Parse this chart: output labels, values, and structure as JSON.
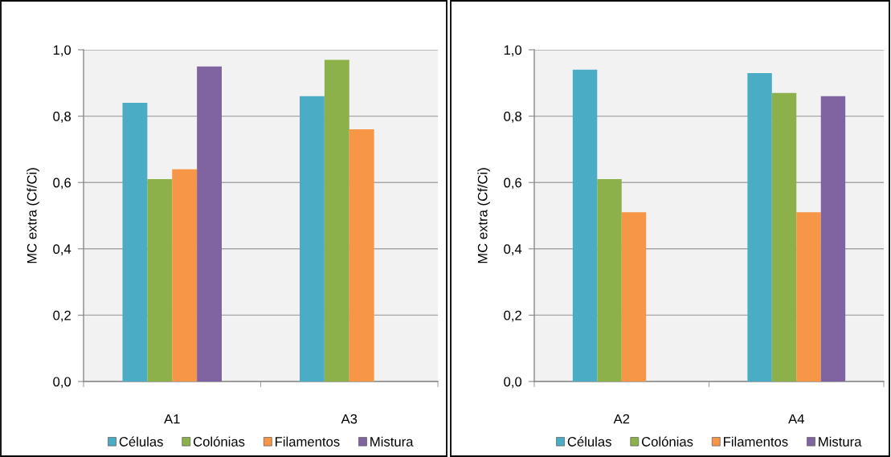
{
  "chart_data": [
    {
      "type": "bar",
      "categories": [
        "A1",
        "A3"
      ],
      "ylabel": "MC extra (Cf/Ci)",
      "ylim": [
        0,
        1.0
      ],
      "yticks": [
        {
          "value": 0,
          "label": "0,0"
        },
        {
          "value": 0.2,
          "label": "0,2"
        },
        {
          "value": 0.4,
          "label": "0,4"
        },
        {
          "value": 0.6,
          "label": "0,6"
        },
        {
          "value": 0.8,
          "label": "0,8"
        },
        {
          "value": 1.0,
          "label": "1,0"
        }
      ],
      "grid": "y",
      "legend": "bottom",
      "series": [
        {
          "name": "Células",
          "color": "#4bacc6",
          "values": [
            0.84,
            0.86
          ]
        },
        {
          "name": "Colónias",
          "color": "#8db14a",
          "values": [
            0.61,
            0.97
          ]
        },
        {
          "name": "Filamentos",
          "color": "#f79646",
          "values": [
            0.64,
            0.76
          ]
        },
        {
          "name": "Mistura",
          "color": "#8064a2",
          "values": [
            0.95,
            null
          ]
        }
      ]
    },
    {
      "type": "bar",
      "categories": [
        "A2",
        "A4"
      ],
      "ylabel": "MC extra (Cf/Ci)",
      "ylim": [
        0,
        1.0
      ],
      "yticks": [
        {
          "value": 0,
          "label": "0,0"
        },
        {
          "value": 0.2,
          "label": "0,2"
        },
        {
          "value": 0.4,
          "label": "0,4"
        },
        {
          "value": 0.6,
          "label": "0,6"
        },
        {
          "value": 0.8,
          "label": "0,8"
        },
        {
          "value": 1.0,
          "label": "1,0"
        }
      ],
      "grid": "y",
      "legend": "bottom",
      "series": [
        {
          "name": "Células",
          "color": "#4bacc6",
          "values": [
            0.94,
            0.93
          ]
        },
        {
          "name": "Colónias",
          "color": "#8db14a",
          "values": [
            0.61,
            0.87
          ]
        },
        {
          "name": "Filamentos",
          "color": "#f79646",
          "values": [
            0.51,
            0.51
          ]
        },
        {
          "name": "Mistura",
          "color": "#8064a2",
          "values": [
            null,
            0.86
          ]
        }
      ]
    }
  ]
}
